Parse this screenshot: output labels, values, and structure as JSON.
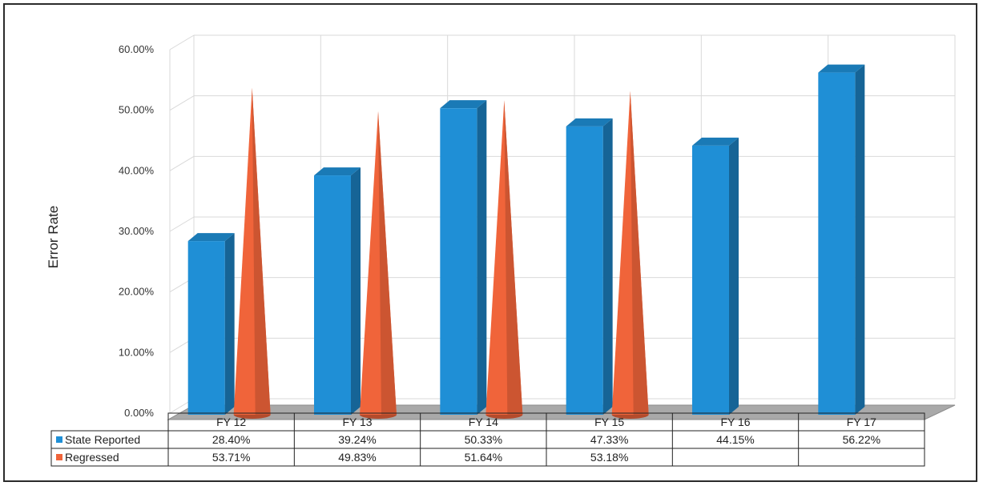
{
  "chart_data": {
    "type": "bar",
    "ylabel": "Error Rate",
    "ylim": [
      0,
      60
    ],
    "yticks": [
      "0.00%",
      "10.00%",
      "20.00%",
      "30.00%",
      "40.00%",
      "50.00%",
      "60.00%"
    ],
    "grid": true,
    "categories": [
      "FY 12",
      "FY 13",
      "FY 14",
      "FY 15",
      "FY 16",
      "FY 17"
    ],
    "series": [
      {
        "name": "State Reported",
        "shape": "bar",
        "color": "#1f8fd6",
        "values": [
          28.4,
          39.24,
          50.33,
          47.33,
          44.15,
          56.22
        ],
        "labels": [
          "28.40%",
          "39.24%",
          "50.33%",
          "47.33%",
          "44.15%",
          "56.22%"
        ]
      },
      {
        "name": "Regressed",
        "shape": "cone",
        "color": "#f0643a",
        "values": [
          53.71,
          49.83,
          51.64,
          53.18,
          null,
          null
        ],
        "labels": [
          "53.71%",
          "49.83%",
          "51.64%",
          "53.18%",
          "",
          ""
        ]
      }
    ],
    "legend": "data-table"
  }
}
